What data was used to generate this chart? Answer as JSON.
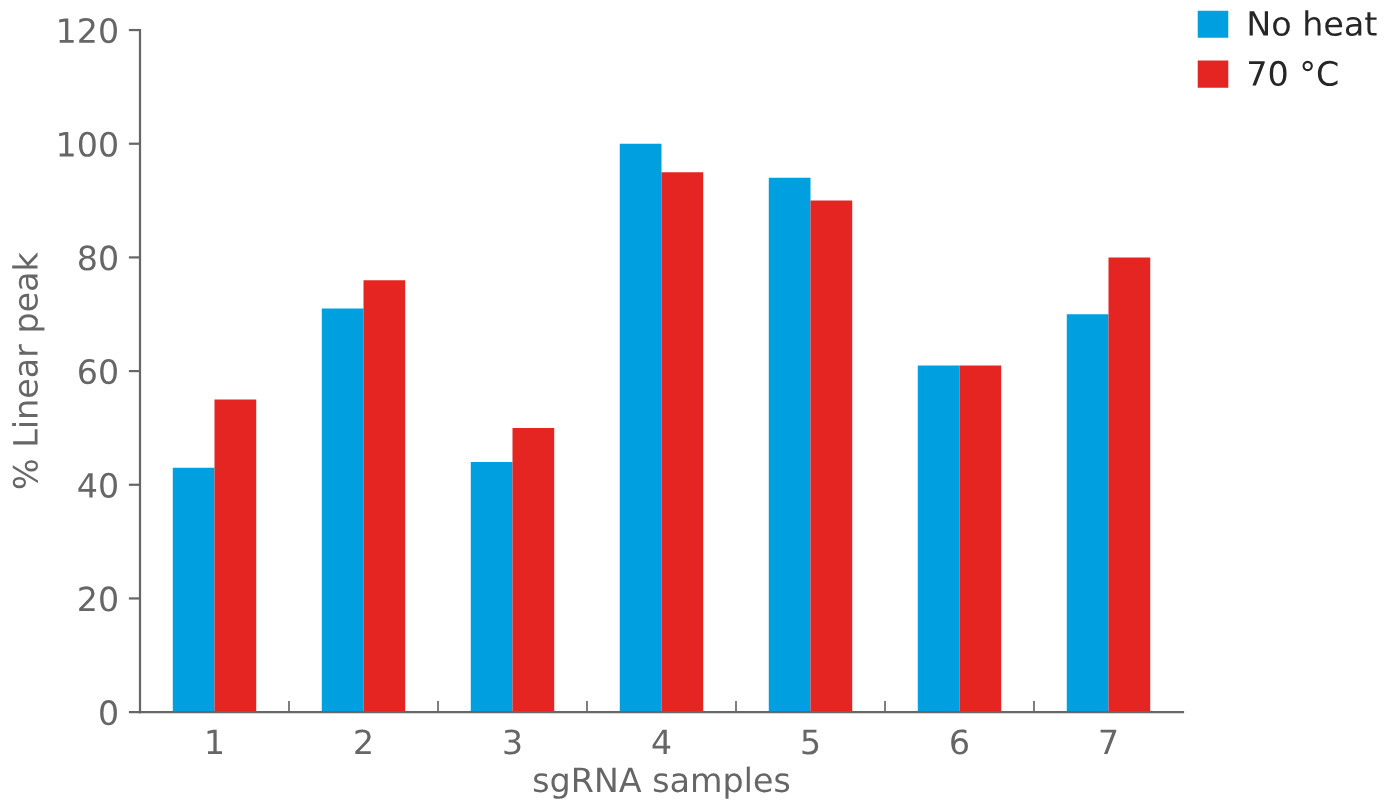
{
  "chart_data": {
    "type": "bar",
    "xlabel": "sgRNA samples",
    "ylabel": "% Linear peak",
    "categories": [
      "1",
      "2",
      "3",
      "4",
      "5",
      "6",
      "7"
    ],
    "series": [
      {
        "name": "No heat",
        "color": "#009fe0",
        "values": [
          43,
          71,
          44,
          100,
          94,
          61,
          70
        ]
      },
      {
        "name": "70 °C",
        "color": "#e52521",
        "values": [
          55,
          76,
          50,
          95,
          90,
          61,
          80
        ]
      }
    ],
    "ylim": [
      0,
      120
    ],
    "yticks": [
      0,
      20,
      40,
      60,
      80,
      100,
      120
    ],
    "grid": false,
    "legend": "top right"
  }
}
